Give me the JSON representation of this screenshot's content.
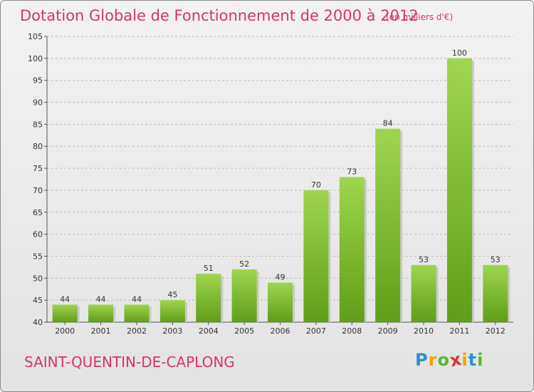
{
  "header": {
    "title": "Dotation Globale de Fonctionnement de 2000 à 2012",
    "unit": "(en milliers d'€)"
  },
  "footer": {
    "commune": "SAINT-QUENTIN-DE-CAPLONG",
    "logo": {
      "letters": [
        "P",
        "r",
        "o",
        "x",
        "i",
        "t",
        "i"
      ],
      "colors": [
        "#2b8fd6",
        "#f2a200",
        "#57b82e",
        "#d8382e",
        "#f2a200",
        "#2b8fd6",
        "#57b82e"
      ]
    }
  },
  "chart_data": {
    "type": "bar",
    "categories": [
      "2000",
      "2001",
      "2002",
      "2003",
      "2004",
      "2005",
      "2006",
      "2007",
      "2008",
      "2009",
      "2010",
      "2011",
      "2012"
    ],
    "values": [
      44,
      44,
      44,
      45,
      51,
      52,
      49,
      70,
      73,
      84,
      53,
      100,
      53
    ],
    "ylim": [
      40,
      105
    ],
    "yticks": [
      40,
      45,
      50,
      55,
      60,
      65,
      70,
      75,
      80,
      85,
      90,
      95,
      100,
      105
    ],
    "grid": "horizontal dashed",
    "bar_color_top": "#9fd54f",
    "bar_color_bottom": "#5f9e18",
    "title": "Dotation Globale de Fonctionnement de 2000 à 2012",
    "ylabel": "(en milliers d'€)"
  }
}
